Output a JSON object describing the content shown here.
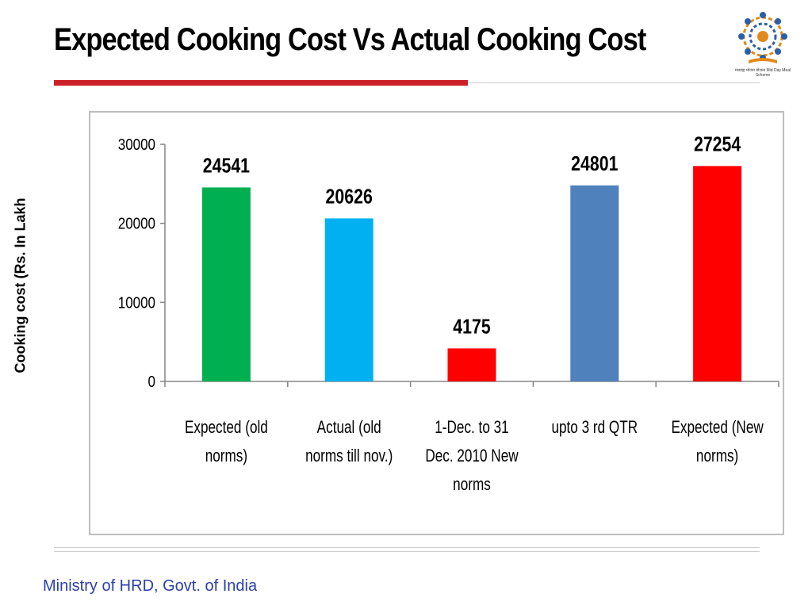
{
  "slide": {
    "title": "Expected Cooking Cost Vs Actual Cooking Cost",
    "footer": "Ministry of HRD, Govt. of India",
    "logo_caption": "मध्याह्न भोजन योजना Mid Day Meal Scheme"
  },
  "chart_data": {
    "type": "bar",
    "title": "",
    "xlabel": "",
    "ylabel": "Cooking cost (Rs. In Lakh",
    "categories": [
      [
        "Expected (old",
        "norms)"
      ],
      [
        "Actual (old",
        "norms till nov.)"
      ],
      [
        "1-Dec. to 31",
        "Dec. 2010 New",
        "norms"
      ],
      [
        "upto 3 rd QTR"
      ],
      [
        "Expected (New",
        "norms)"
      ]
    ],
    "values": [
      24541,
      20626,
      4175,
      24801,
      27254
    ],
    "data_labels": [
      "24541",
      "20626",
      "4175",
      "24801",
      "27254"
    ],
    "colors": [
      "#00b050",
      "#00b0f0",
      "#ff0000",
      "#4f81bd",
      "#ff0000"
    ],
    "ylim": [
      0,
      30000
    ],
    "yticks": [
      "0",
      "10000",
      "20000",
      "30000"
    ],
    "grid": false,
    "legend": "none"
  }
}
